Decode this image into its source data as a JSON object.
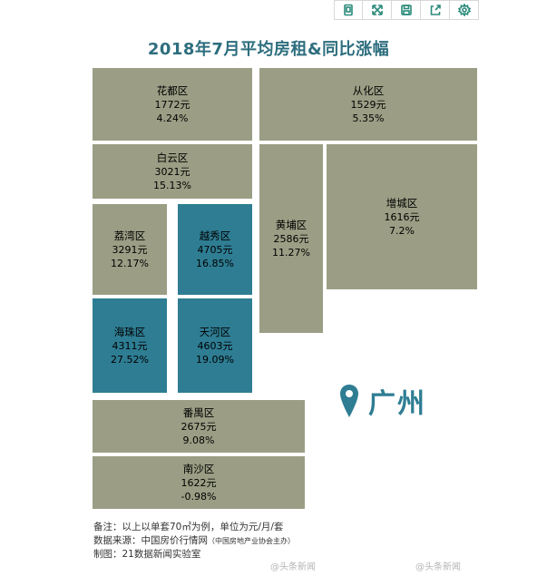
{
  "toolbar": {
    "icons": [
      "screenshot-icon",
      "expand-icon",
      "save-icon",
      "share-icon",
      "settings-icon"
    ]
  },
  "title": "2018年7月平均房租&同比涨幅",
  "districts": [
    {
      "name": "花都区",
      "rent": "1772元",
      "change": "4.24%",
      "color": "#9b9e84"
    },
    {
      "name": "从化区",
      "rent": "1529元",
      "change": "5.35%",
      "color": "#9b9e84"
    },
    {
      "name": "白云区",
      "rent": "3021元",
      "change": "15.13%",
      "color": "#9b9e84"
    },
    {
      "name": "黄埔区",
      "rent": "2586元",
      "change": "11.27%",
      "color": "#9b9e84"
    },
    {
      "name": "增城区",
      "rent": "1616元",
      "change": "7.2%",
      "color": "#9b9e84"
    },
    {
      "name": "荔湾区",
      "rent": "3291元",
      "change": "12.17%",
      "color": "#9b9e84"
    },
    {
      "name": "越秀区",
      "rent": "4705元",
      "change": "16.85%",
      "color": "#2e7d93"
    },
    {
      "name": "海珠区",
      "rent": "4311元",
      "change": "27.52%",
      "color": "#2e7d93"
    },
    {
      "name": "天河区",
      "rent": "4603元",
      "change": "19.09%",
      "color": "#2e7d93"
    },
    {
      "name": "番禺区",
      "rent": "2675元",
      "change": "9.08%",
      "color": "#9b9e84"
    },
    {
      "name": "南沙区",
      "rent": "1622元",
      "change": "-0.98%",
      "color": "#9b9e84"
    }
  ],
  "city": {
    "name": "广州",
    "icon": "map-pin-icon"
  },
  "notes": {
    "line1": "备注：以上以单套70㎡为例，单位为元/月/套",
    "line2": "数据来源：中国房价行情网",
    "line2_small": "（中国房地产业协会主办）",
    "line3": "制图：21数据新闻实验室"
  },
  "watermarks": [
    "@头条新闻",
    "@头条新闻"
  ]
}
